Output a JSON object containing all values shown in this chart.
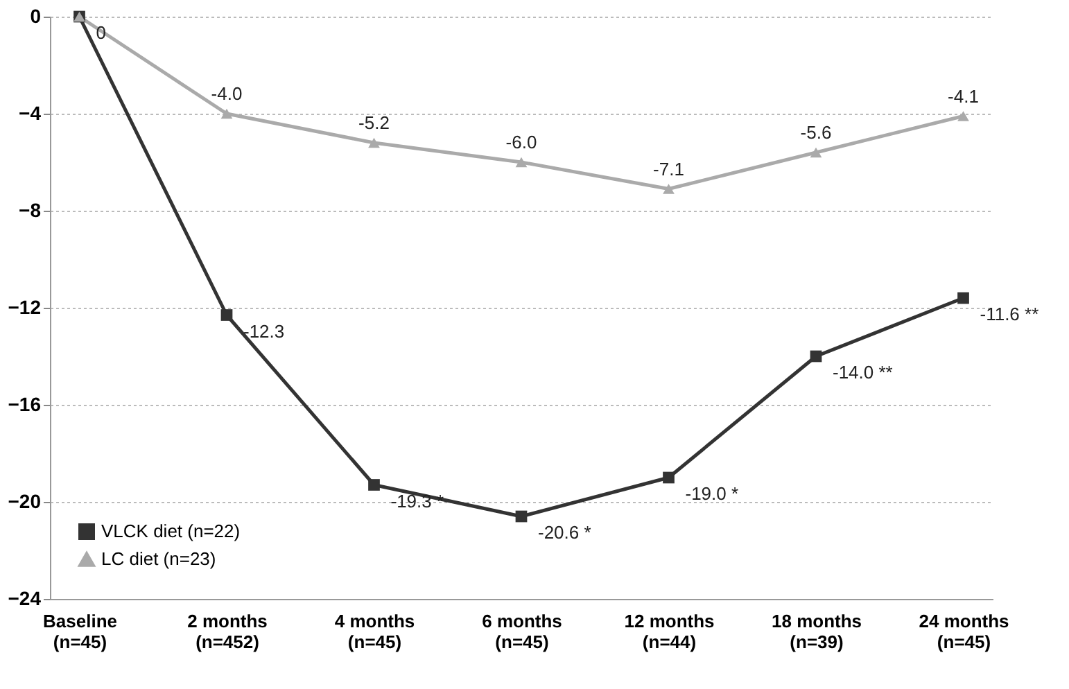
{
  "chart_data": {
    "type": "line",
    "categories": [
      "Baseline\n(n=45)",
      "2 months\n(n=452)",
      "4 months\n(n=45)",
      "6 months\n(n=45)",
      "12 months\n(n=44)",
      "18 months\n(n=39)",
      "24 months\n(n=45)"
    ],
    "series": [
      {
        "name": "VLCK diet (n=22)",
        "color": "#333333",
        "marker": "square",
        "values": [
          0,
          -12.3,
          -19.3,
          -20.6,
          -19.0,
          -14.0,
          -11.6
        ],
        "value_labels": [
          "0",
          "-12.3",
          "-19.3 *",
          "-20.6 *",
          "-19.0 *",
          "-14.0 **",
          "-11.6 **"
        ]
      },
      {
        "name": "LC diet (n=23)",
        "color": "#aaaaaa",
        "marker": "triangle",
        "values": [
          0,
          -4.0,
          -5.2,
          -6.0,
          -7.1,
          -5.6,
          -4.1
        ],
        "value_labels": [
          null,
          "-4.0",
          "-5.2",
          "-6.0",
          "-7.1",
          "-5.6",
          "-4.1"
        ]
      }
    ],
    "ylim": [
      -24,
      0
    ],
    "yticks": [
      0,
      -4,
      -8,
      -12,
      -16,
      -20,
      -24
    ],
    "grid": "y",
    "legend": "bottom left",
    "line_style": "solid"
  }
}
